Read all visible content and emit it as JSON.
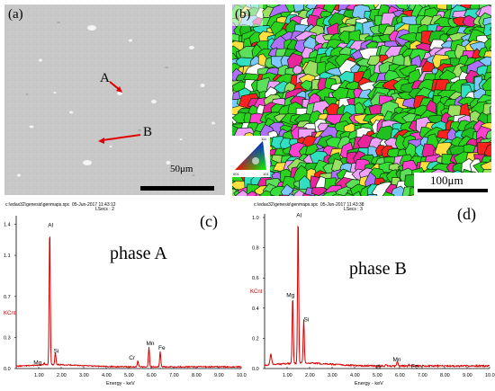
{
  "colors": {
    "spectrum": "#d40000",
    "sem_bg": "#c9c9c9",
    "ebsd_green": "#2ad41e",
    "grain_boundary": "#000000"
  },
  "panel_a": {
    "label": "(a)",
    "marker_A": "A",
    "marker_B": "B",
    "scale_bar": "50μm"
  },
  "panel_b": {
    "label": "(b)",
    "scale_bar": "100μm",
    "ipf_key": {
      "corner_001": "001",
      "corner_101": "101",
      "corner_111": "111"
    }
  },
  "spectra": [
    {
      "label": "(c)",
      "header": "c:\\edax32\\genesis\\genmaps.spc",
      "date": "05-Jun-2017 11:43:12",
      "lsecs": "LSecs : 2",
      "phase": "phase A",
      "ylabel": "KCnt",
      "xlabel": "Energy - keV",
      "y_ticks": [
        "1.4",
        "1.1",
        "0.7",
        "0.3",
        "0.0"
      ],
      "x_ticks": [
        "1.00",
        "2.00",
        "3.00",
        "4.00",
        "5.00",
        "6.00",
        "7.00",
        "8.00",
        "9.00",
        "10.0"
      ],
      "peaks": [
        {
          "name": "Mg",
          "energy": 1.25,
          "height": 0.02
        },
        {
          "name": "Al",
          "energy": 1.49,
          "height": 1.34
        },
        {
          "name": "Si",
          "energy": 1.74,
          "height": 0.12
        },
        {
          "name": "Cr",
          "energy": 5.41,
          "height": 0.06
        },
        {
          "name": "Mn",
          "energy": 5.9,
          "height": 0.19
        },
        {
          "name": "Fe",
          "energy": 6.4,
          "height": 0.15
        }
      ]
    },
    {
      "label": "(d)",
      "header": "c:\\edax32\\genesis\\genmaps.spc",
      "date": "05-Jun-2017 11:43:38",
      "lsecs": "LSecs : 3",
      "phase": "phase B",
      "ylabel": "KCnt",
      "xlabel": "Energy - keV",
      "y_ticks": [
        "1.0",
        "0.8",
        "0.6",
        "0.4",
        "0.2",
        "0.0"
      ],
      "x_ticks": [
        "1.00",
        "2.00",
        "3.00",
        "4.00",
        "5.00",
        "6.00",
        "7.00",
        "8.00",
        "9.00",
        "10.0"
      ],
      "peaks": [
        {
          "name": "Mg",
          "energy": 1.25,
          "height": 0.45
        },
        {
          "name": "Al",
          "energy": 1.49,
          "height": 0.98
        },
        {
          "name": "Si",
          "energy": 1.74,
          "height": 0.29
        },
        {
          "name": "Cr",
          "energy": 5.41,
          "height": 0.01
        },
        {
          "name": "Mn",
          "energy": 5.9,
          "height": 0.03
        },
        {
          "name": "Fe",
          "energy": 6.4,
          "height": 0.01
        }
      ]
    }
  ]
}
